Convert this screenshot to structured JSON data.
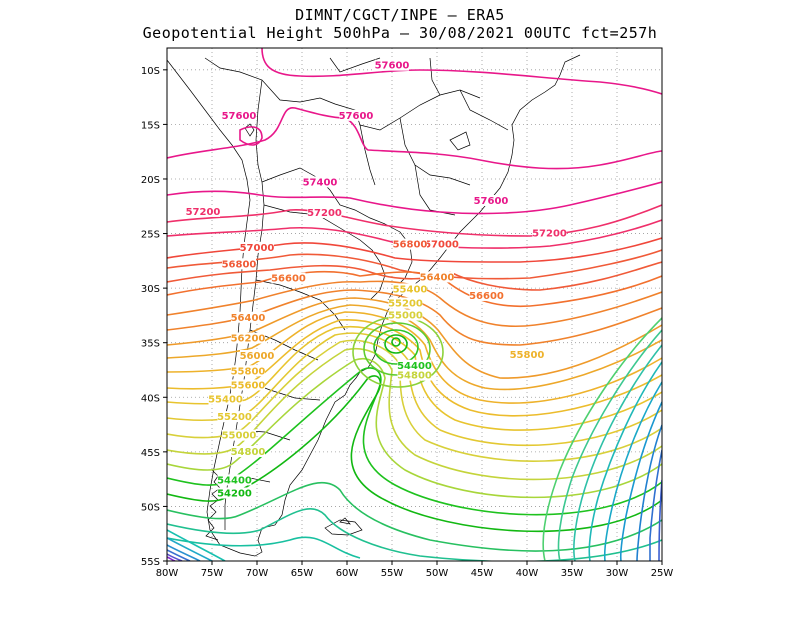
{
  "header": {
    "line1": "DIMNT/CGCT/INPE –  ERA5",
    "line2": "Geopotential Height 500hPa –  30/08/2021 00UTC fct=257h"
  },
  "map": {
    "lon_range": [
      -80,
      -25
    ],
    "lat_range": [
      -55,
      -8
    ],
    "x_ticks": [
      {
        "lon": -80,
        "label": "80W"
      },
      {
        "lon": -75,
        "label": "75W"
      },
      {
        "lon": -70,
        "label": "70W"
      },
      {
        "lon": -65,
        "label": "65W"
      },
      {
        "lon": -60,
        "label": "60W"
      },
      {
        "lon": -55,
        "label": "55W"
      },
      {
        "lon": -50,
        "label": "50W"
      },
      {
        "lon": -45,
        "label": "45W"
      },
      {
        "lon": -40,
        "label": "40W"
      },
      {
        "lon": -35,
        "label": "35W"
      },
      {
        "lon": -30,
        "label": "30W"
      },
      {
        "lon": -25,
        "label": "25W"
      }
    ],
    "y_ticks": [
      {
        "lat": -10,
        "label": "10S"
      },
      {
        "lat": -15,
        "label": "15S"
      },
      {
        "lat": -20,
        "label": "20S"
      },
      {
        "lat": -25,
        "label": "25S"
      },
      {
        "lat": -30,
        "label": "30S"
      },
      {
        "lat": -35,
        "label": "35S"
      },
      {
        "lat": -40,
        "label": "40S"
      },
      {
        "lat": -45,
        "label": "45S"
      },
      {
        "lat": -50,
        "label": "50S"
      },
      {
        "lat": -55,
        "label": "55S"
      }
    ],
    "grid": true,
    "low_center": {
      "lon": -54,
      "lat": -34.5
    },
    "contour_labels": [
      {
        "text": "57600",
        "lon": -55,
        "lat": -9.8,
        "color": "#e8178a"
      },
      {
        "text": "57600",
        "lon": -72,
        "lat": -14.4,
        "color": "#e8178a"
      },
      {
        "text": "57600",
        "lon": -59,
        "lat": -14.4,
        "color": "#e8178a"
      },
      {
        "text": "57600",
        "lon": -44,
        "lat": -22.2,
        "color": "#e8178a"
      },
      {
        "text": "57400",
        "lon": -63,
        "lat": -20.5,
        "color": "#e8178a"
      },
      {
        "text": "57200",
        "lon": -76,
        "lat": -23.2,
        "color": "#ef2f6a"
      },
      {
        "text": "57200",
        "lon": -62.5,
        "lat": -23.3,
        "color": "#ef2f6a"
      },
      {
        "text": "57200",
        "lon": -37.5,
        "lat": -25.2,
        "color": "#ef2f6a"
      },
      {
        "text": "57000",
        "lon": -70,
        "lat": -26.5,
        "color": "#f0473a"
      },
      {
        "text": "57000",
        "lon": -49.5,
        "lat": -26.2,
        "color": "#f0473a"
      },
      {
        "text": "56800",
        "lon": -72,
        "lat": -28,
        "color": "#f05a38"
      },
      {
        "text": "56800",
        "lon": -53,
        "lat": -26.2,
        "color": "#f05a38"
      },
      {
        "text": "56600",
        "lon": -66.5,
        "lat": -29.3,
        "color": "#f2702e"
      },
      {
        "text": "56600",
        "lon": -44.5,
        "lat": -30.9,
        "color": "#f2702e"
      },
      {
        "text": "56400",
        "lon": -50,
        "lat": -29.2,
        "color": "#f0822c"
      },
      {
        "text": "56400",
        "lon": -71,
        "lat": -32.9,
        "color": "#f0822c"
      },
      {
        "text": "56200",
        "lon": -71,
        "lat": -34.8,
        "color": "#ef9a2a"
      },
      {
        "text": "56000",
        "lon": -70,
        "lat": -36.4,
        "color": "#eda82a"
      },
      {
        "text": "55800",
        "lon": -71,
        "lat": -37.8,
        "color": "#eeb22b"
      },
      {
        "text": "55800",
        "lon": -40,
        "lat": -36.3,
        "color": "#eeb22b"
      },
      {
        "text": "55600",
        "lon": -71,
        "lat": -39.1,
        "color": "#ecbc2c"
      },
      {
        "text": "55400",
        "lon": -73.5,
        "lat": -40.4,
        "color": "#e8c42e"
      },
      {
        "text": "55400",
        "lon": -53,
        "lat": -30.3,
        "color": "#e8c42e"
      },
      {
        "text": "55200",
        "lon": -72.5,
        "lat": -42,
        "color": "#e3c832"
      },
      {
        "text": "55200",
        "lon": -53.5,
        "lat": -31.6,
        "color": "#e3c832"
      },
      {
        "text": "55000",
        "lon": -72,
        "lat": -43.7,
        "color": "#d8d03a"
      },
      {
        "text": "55000",
        "lon": -53.5,
        "lat": -32.7,
        "color": "#d8d03a"
      },
      {
        "text": "54800",
        "lon": -71,
        "lat": -45.2,
        "color": "#c4d43a"
      },
      {
        "text": "54800",
        "lon": -52.5,
        "lat": -38.2,
        "color": "#c4d43a"
      },
      {
        "text": "54400",
        "lon": -72.5,
        "lat": -47.8,
        "color": "#1ec21e"
      },
      {
        "text": "54400",
        "lon": -52.5,
        "lat": -37.3,
        "color": "#1ec21e"
      },
      {
        "text": "54200",
        "lon": -72.5,
        "lat": -49,
        "color": "#12b812"
      }
    ]
  },
  "colors": {
    "h577": "#e8178a",
    "h573": "#ef2f6a",
    "h567": "#f2702e",
    "h561": "#ef9a2a",
    "h555": "#e8c42e",
    "h549": "#c4d43a",
    "h543": "#12b812",
    "h537": "#18c0a0",
    "h531": "#1aa8c8",
    "h525": "#3a5ed0",
    "h519": "#8a2ad0",
    "borders": "#000000"
  }
}
